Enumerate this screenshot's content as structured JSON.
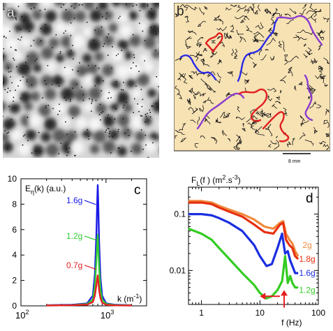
{
  "figure": {
    "panels": [
      {
        "id": "a",
        "label": "a"
      },
      {
        "id": "b",
        "label": "b",
        "scale_bar_label": "8 mm"
      },
      {
        "id": "c",
        "label": "c"
      },
      {
        "id": "d",
        "label": "d"
      }
    ]
  },
  "chart_data": [
    {
      "panel": "c",
      "type": "line",
      "title": "",
      "ylabel_text": "E",
      "ylabel_sub": "η",
      "ylabel_tail": "(k) (a.u.)",
      "xlabel_text": "k (m",
      "xlabel_sup": "-1",
      "xlabel_close": ")",
      "xscale": "log",
      "xlim": [
        100,
        3000
      ],
      "ylim": [
        0,
        10
      ],
      "x_ticks": [
        {
          "value": 100,
          "base": "10",
          "exp": "2"
        },
        {
          "value": 1000,
          "base": "10",
          "exp": "3"
        }
      ],
      "y_ticks": [
        0,
        2,
        4,
        6,
        8,
        10
      ],
      "series": [
        {
          "name": "1.6g",
          "color": "#1a1ae6",
          "peak": 9.5,
          "x": [
            200,
            400,
            600,
            700,
            740,
            770,
            790,
            800,
            810,
            830,
            860,
            900,
            1000,
            1300,
            2000
          ],
          "y": [
            0.05,
            0.08,
            0.2,
            0.8,
            2.5,
            5.5,
            8.5,
            9.5,
            8.2,
            5.0,
            2.2,
            0.8,
            0.2,
            0.08,
            0.05
          ]
        },
        {
          "name": "1.2g",
          "color": "#33cc33",
          "peak": 5.6,
          "x": [
            200,
            400,
            600,
            700,
            740,
            770,
            790,
            800,
            810,
            830,
            860,
            900,
            1000,
            1300,
            2000
          ],
          "y": [
            0.04,
            0.06,
            0.15,
            0.5,
            1.6,
            3.5,
            5.1,
            5.6,
            4.8,
            3.0,
            1.3,
            0.5,
            0.15,
            0.06,
            0.04
          ]
        },
        {
          "name": "0.7g",
          "color": "#e62020",
          "peak": 2.4,
          "x": [
            200,
            400,
            600,
            700,
            740,
            770,
            790,
            800,
            810,
            830,
            860,
            900,
            1000,
            1300,
            2000
          ],
          "y": [
            0.03,
            0.05,
            0.1,
            0.3,
            0.8,
            1.6,
            2.2,
            2.4,
            2.0,
            1.2,
            0.6,
            0.25,
            0.08,
            0.04,
            0.03
          ]
        }
      ]
    },
    {
      "panel": "d",
      "type": "line",
      "title": "",
      "ylabel_text": "F",
      "ylabel_sub": "L",
      "ylabel_mid": "(f ) (m",
      "ylabel_sup1": "2",
      "ylabel_dot": ".s",
      "ylabel_sup2": "-3",
      "ylabel_close": ")",
      "xlabel": "f (Hz)",
      "xscale": "log",
      "yscale": "log",
      "xlim": [
        0.6,
        100
      ],
      "ylim": [
        0.0025,
        0.3
      ],
      "x_ticks": [
        1,
        10,
        100
      ],
      "x_tick_labels": [
        "1",
        "10",
        "100"
      ],
      "y_ticks": [
        0.01,
        0.1
      ],
      "y_tick_labels": [
        "0.01",
        "0.1"
      ],
      "series": [
        {
          "name": "2g",
          "color": "#f08a3c",
          "x": [
            0.6,
            1,
            1.5,
            2,
            3,
            5,
            8,
            12,
            17,
            22,
            25,
            28,
            32,
            36,
            40,
            45
          ],
          "y": [
            0.17,
            0.17,
            0.16,
            0.14,
            0.12,
            0.1,
            0.08,
            0.06,
            0.055,
            0.07,
            0.075,
            0.045,
            0.035,
            0.03,
            0.022,
            0.018
          ]
        },
        {
          "name": "1.8g",
          "color": "#e63010",
          "x": [
            0.6,
            1,
            1.5,
            2,
            3,
            5,
            8,
            12,
            17,
            22,
            25,
            28,
            32,
            36,
            40,
            45
          ],
          "y": [
            0.16,
            0.16,
            0.15,
            0.13,
            0.11,
            0.09,
            0.065,
            0.048,
            0.045,
            0.065,
            0.07,
            0.035,
            0.028,
            0.025,
            0.018,
            0.016
          ]
        },
        {
          "name": "1.6g",
          "color": "#1a2ee0",
          "x": [
            0.6,
            1,
            1.5,
            2,
            3,
            5,
            8,
            10,
            13,
            16,
            20,
            24,
            27,
            30,
            33,
            36,
            40,
            45
          ],
          "y": [
            0.1,
            0.1,
            0.095,
            0.085,
            0.07,
            0.05,
            0.028,
            0.018,
            0.012,
            0.013,
            0.025,
            0.045,
            0.02,
            0.022,
            0.015,
            0.012,
            0.009,
            0.009
          ]
        },
        {
          "name": "1.2g",
          "color": "#33cc22",
          "x": [
            0.6,
            1,
            1.5,
            2,
            3,
            5,
            8,
            10,
            13,
            16,
            20,
            24,
            27,
            30,
            33,
            36,
            40,
            45
          ],
          "y": [
            0.055,
            0.045,
            0.035,
            0.025,
            0.016,
            0.009,
            0.0055,
            0.004,
            0.0032,
            0.0035,
            0.0045,
            0.0065,
            0.018,
            0.006,
            0.008,
            0.006,
            0.005,
            0.005
          ]
        }
      ],
      "annotations": [
        {
          "type": "arrow-left",
          "color": "#e62020",
          "x_from": 22,
          "x_to": 10,
          "y": 0.0035
        },
        {
          "type": "arrow-up",
          "color": "#e62020",
          "x": 26,
          "y_from": 0.0022,
          "y_to": 0.0045
        }
      ]
    }
  ]
}
